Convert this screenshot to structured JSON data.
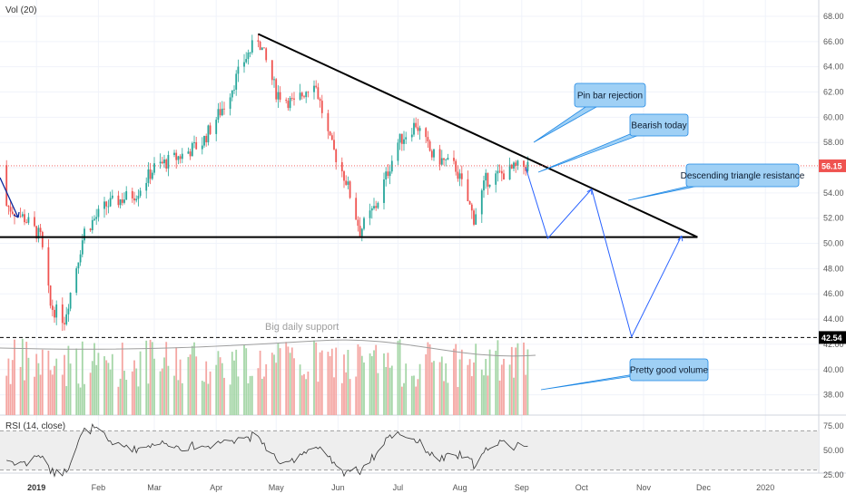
{
  "chart_data": {
    "type": "candlestick",
    "indicators": {
      "volume_label": "Vol (20)",
      "rsi_label": "RSI (14, close)",
      "rsi_levels": [
        "75.00",
        "50.00",
        "25.00"
      ],
      "rsi_band": [
        30,
        70
      ]
    },
    "price_axis": {
      "ylim": [
        37,
        68
      ],
      "ticks": [
        "68.00",
        "66.00",
        "64.00",
        "62.00",
        "60.00",
        "58.00",
        "56.00",
        "54.00",
        "52.00",
        "50.00",
        "48.00",
        "46.00",
        "44.00",
        "42.00",
        "40.00",
        "38.00"
      ]
    },
    "time_axis": {
      "ticks": [
        "2019",
        "Feb",
        "Mar",
        "Apr",
        "May",
        "Jun",
        "Jul",
        "Aug",
        "Sep",
        "Oct",
        "Nov",
        "Dec",
        "2020"
      ]
    },
    "last_price": {
      "value": 56.15,
      "label": "56.15",
      "color": "#ef5350"
    },
    "support_level": {
      "value": 42.54,
      "label": "42.54"
    },
    "support_annotation": "Big daily support",
    "triangle": {
      "resistance_start": {
        "date": "2019-04-22",
        "price": 66.6
      },
      "resistance_end": {
        "date": "2019-11-28",
        "price": 50.5
      },
      "support_price": 50.5
    },
    "callouts": {
      "pin_bar": "Pin bar rejection",
      "bearish": "Bearish today",
      "triangle_resistance": "Descending triangle resistance",
      "volume": "Pretty good volume"
    },
    "projection_path_prices": [
      {
        "date": "2019-09-03",
        "price": 56.0
      },
      {
        "date": "2019-09-14",
        "price": 50.4
      },
      {
        "date": "2019-10-06",
        "price": 54.3
      },
      {
        "date": "2019-10-26",
        "price": 42.6
      },
      {
        "date": "2019-11-20",
        "price": 50.6
      }
    ],
    "colors": {
      "up": "#26a69a",
      "down": "#ef5350",
      "vol_up": "#a5d6a7",
      "vol_down": "#f4a6a2",
      "projection": "#2962ff",
      "callout_fill": "#9fd0f5",
      "callout_stroke": "#1e88e5"
    }
  }
}
